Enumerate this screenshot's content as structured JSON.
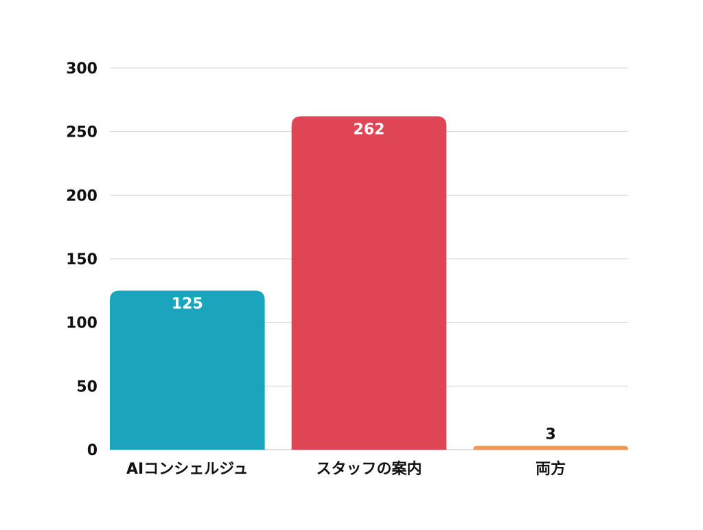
{
  "chart_data": {
    "type": "bar",
    "title": "",
    "xlabel": "",
    "ylabel": "",
    "categories": [
      "AIコンシェルジュ",
      "スタッフの案内",
      "両方"
    ],
    "values": [
      125,
      262,
      3
    ],
    "ylim": [
      0,
      300
    ],
    "yticks": [
      "0",
      "50",
      "100",
      "150",
      "200",
      "250",
      "300"
    ],
    "data_labels": [
      "125",
      "262",
      "3"
    ],
    "colors": [
      "#1ba5bc",
      "#e04556",
      "#f4964f"
    ],
    "grid": true,
    "legend": "none"
  }
}
